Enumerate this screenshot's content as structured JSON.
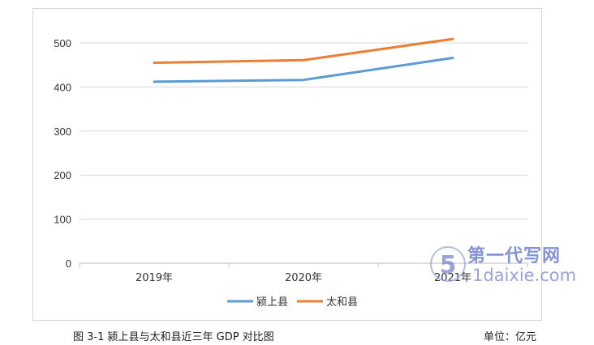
{
  "chart_data": {
    "type": "line",
    "title": "",
    "xlabel": "",
    "ylabel": "",
    "categories": [
      "2019年",
      "2020年",
      "2021年"
    ],
    "ylim": [
      0,
      500
    ],
    "yticks": [
      0,
      100,
      200,
      300,
      400,
      500
    ],
    "grid": true,
    "legend_position": "bottom",
    "series": [
      {
        "name": "颍上县",
        "values": [
          412,
          416,
          466
        ],
        "color": "#5B9BD5"
      },
      {
        "name": "太和县",
        "values": [
          455,
          461,
          509
        ],
        "color": "#ED7D31"
      }
    ]
  },
  "caption": "图 3-1 颍上县与太和县近三年 GDP 对比图",
  "unit": "单位：亿元",
  "watermark": {
    "line1": "第一代写网",
    "line2": "1daixie.com",
    "logo": "5"
  }
}
